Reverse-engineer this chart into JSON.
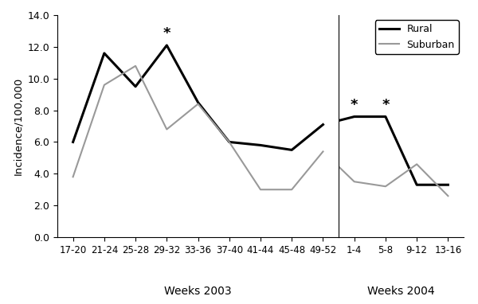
{
  "x_labels_2003": [
    "17-20",
    "21-24",
    "25-28",
    "29-32",
    "33-36",
    "37-40",
    "41-44",
    "45-48",
    "49-52"
  ],
  "x_labels_2004": [
    "1-4",
    "5-8",
    "9-12",
    "13-16"
  ],
  "rural_2003": [
    6.0,
    11.6,
    9.5,
    12.1,
    8.5,
    6.0,
    5.8,
    5.5,
    7.1
  ],
  "rural_2004": [
    7.1,
    7.6,
    7.6,
    3.3,
    3.3
  ],
  "suburban_2003": [
    3.8,
    9.6,
    10.8,
    6.8,
    8.4,
    6.0,
    3.0,
    3.0,
    5.4
  ],
  "suburban_2004": [
    5.4,
    3.5,
    3.2,
    4.6,
    2.6
  ],
  "rural_color": "#000000",
  "suburban_color": "#999999",
  "rural_linewidth": 2.2,
  "suburban_linewidth": 1.5,
  "ylabel": "Incidence/100,000",
  "ylim": [
    0.0,
    14.0
  ],
  "yticks": [
    0.0,
    2.0,
    4.0,
    6.0,
    8.0,
    10.0,
    12.0,
    14.0
  ],
  "weeks2003_label": "Weeks 2003",
  "weeks2004_label": "Weeks 2004",
  "legend_rural": "Rural",
  "legend_suburban": "Suburban",
  "figsize": [
    6.0,
    3.82
  ],
  "dpi": 100,
  "star_2003_idx": 3,
  "star_2004_idx1": 1,
  "star_2004_idx2": 2
}
